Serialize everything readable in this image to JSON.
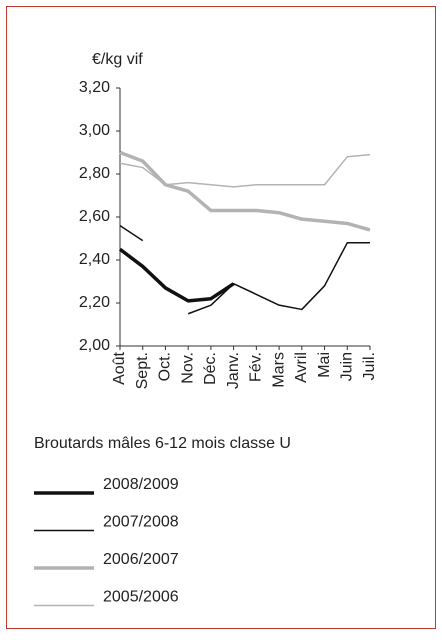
{
  "chart_data": {
    "type": "line",
    "y_label": "€/kg vif",
    "subtitle": "Broutards mâles 6-12 mois classe U",
    "categories": [
      "Août",
      "Sept.",
      "Oct.",
      "Nov.",
      "Déc.",
      "Janv.",
      "Fév.",
      "Mars",
      "Avril",
      "Mai",
      "Juin",
      "Juil."
    ],
    "series": [
      {
        "name": "2008/2009",
        "color": "#111111",
        "line_width": 3.5,
        "values": [
          2.45,
          2.37,
          2.27,
          2.21,
          2.22,
          2.29,
          null,
          null,
          null,
          null,
          null,
          null
        ]
      },
      {
        "name": "2007/2008",
        "color": "#111111",
        "line_width": 1.5,
        "values": [
          2.56,
          2.49,
          null,
          2.15,
          2.19,
          2.29,
          2.24,
          2.19,
          2.17,
          2.28,
          2.48,
          2.48
        ]
      },
      {
        "name": "2006/2007",
        "color": "#b3b3b3",
        "line_width": 3.5,
        "values": [
          2.9,
          2.86,
          2.75,
          2.72,
          2.63,
          2.63,
          2.63,
          2.62,
          2.59,
          2.58,
          2.57,
          2.54
        ]
      },
      {
        "name": "2005/2006",
        "color": "#b3b3b3",
        "line_width": 1.5,
        "values": [
          2.85,
          2.83,
          2.75,
          2.76,
          2.75,
          2.74,
          2.75,
          2.75,
          2.75,
          2.75,
          2.88,
          2.89
        ]
      }
    ],
    "ylim": [
      2.0,
      3.2
    ],
    "yticks": [
      {
        "value": 2.0,
        "label": "2,00"
      },
      {
        "value": 2.2,
        "label": "2,20"
      },
      {
        "value": 2.4,
        "label": "2,40"
      },
      {
        "value": 2.6,
        "label": "2,60"
      },
      {
        "value": 2.8,
        "label": "2,80"
      },
      {
        "value": 3.0,
        "label": "3,00"
      },
      {
        "value": 3.2,
        "label": "3,20"
      }
    ],
    "legend": "bottom"
  }
}
